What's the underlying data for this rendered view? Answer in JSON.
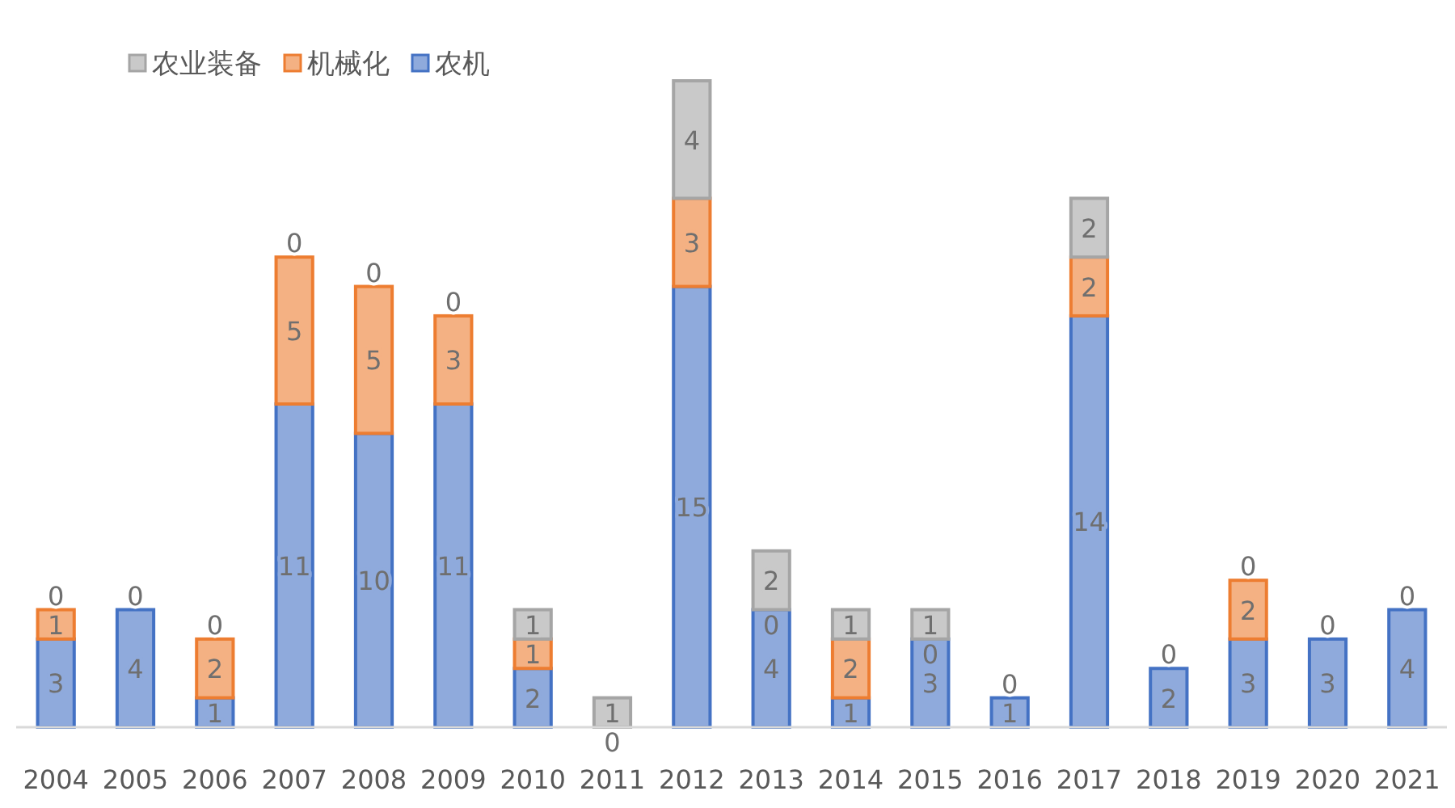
{
  "chart_data": {
    "type": "bar",
    "stacked": true,
    "data_labels": true,
    "legend": "top left",
    "categories": [
      "2004",
      "2005",
      "2006",
      "2007",
      "2008",
      "2009",
      "2010",
      "2011",
      "2012",
      "2013",
      "2014",
      "2015",
      "2016",
      "2017",
      "2018",
      "2019",
      "2020",
      "2021"
    ],
    "series": [
      {
        "name": "农机",
        "color": "#8faadc",
        "values": [
          3,
          4,
          1,
          11,
          10,
          11,
          2,
          0,
          15,
          4,
          1,
          3,
          1,
          14,
          2,
          3,
          3,
          4
        ]
      },
      {
        "name": "机械化",
        "color": "#f4b183",
        "values": [
          1,
          0,
          2,
          5,
          5,
          3,
          1,
          null,
          3,
          0,
          2,
          0,
          0,
          2,
          0,
          2,
          0,
          0
        ]
      },
      {
        "name": "农业装备",
        "color": "#c9c9c9",
        "values": [
          0,
          null,
          0,
          0,
          0,
          0,
          1,
          1,
          4,
          2,
          1,
          1,
          null,
          2,
          null,
          0,
          null,
          null
        ]
      }
    ]
  }
}
